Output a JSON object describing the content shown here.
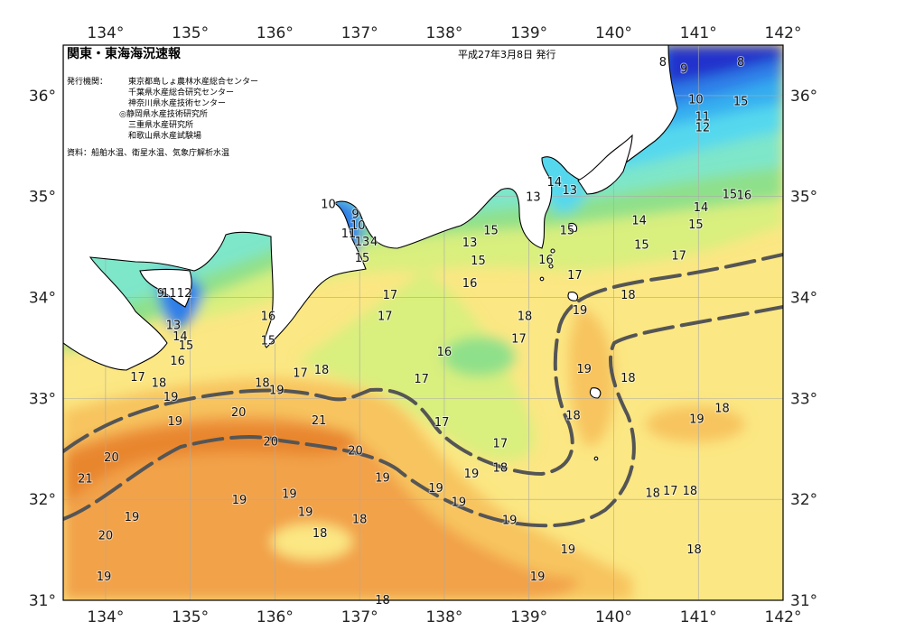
{
  "header": {
    "title": "関東・東海海況速報",
    "date": "平成27年3月8日 発行"
  },
  "issuers": {
    "label": "発行機関：",
    "items": [
      "東京都島しょ農林水産総合センター",
      "千葉県水産総合研究センター",
      "神奈川県水産技術センター",
      "◎静岡県水産技術研究所",
      "三重県水産研究所",
      "和歌山県水産試験場"
    ]
  },
  "source": "資料：船舶水温、衛星水温、気象庁解析水温",
  "axes": {
    "lon_ticks": [
      "134°",
      "135°",
      "136°",
      "137°",
      "138°",
      "139°",
      "140°",
      "141°",
      "142°"
    ],
    "lat_ticks": [
      "36°",
      "35°",
      "34°",
      "33°",
      "32°",
      "31°"
    ],
    "lon_range": [
      133.5,
      142.0
    ],
    "lat_range": [
      31.0,
      36.5
    ]
  },
  "colors": {
    "t8": "#2233cc",
    "t10": "#2f7fe8",
    "t12": "#36aef0",
    "t14": "#55d8ee",
    "t15": "#7ee6c9",
    "t16": "#8fe08a",
    "t17": "#d9ef7e",
    "t18": "#fbe783",
    "t19": "#f7c45f",
    "t20": "#f2a24a",
    "t21": "#e8862f",
    "land": "#ffffff",
    "kuroshio": "#555555"
  },
  "isotherm_labels": [
    {
      "t": "8",
      "lon": 140.58,
      "lat": 36.34
    },
    {
      "t": "9",
      "lon": 140.83,
      "lat": 36.27
    },
    {
      "t": "8",
      "lon": 141.5,
      "lat": 36.34
    },
    {
      "t": "10",
      "lon": 140.97,
      "lat": 35.97
    },
    {
      "t": "15",
      "lon": 141.5,
      "lat": 35.95
    },
    {
      "t": "11",
      "lon": 141.05,
      "lat": 35.8
    },
    {
      "t": "12",
      "lon": 141.05,
      "lat": 35.69
    },
    {
      "t": "15",
      "lon": 141.37,
      "lat": 35.03
    },
    {
      "t": "16",
      "lon": 141.54,
      "lat": 35.02
    },
    {
      "t": "14",
      "lon": 141.03,
      "lat": 34.9
    },
    {
      "t": "14",
      "lon": 140.3,
      "lat": 34.77
    },
    {
      "t": "15",
      "lon": 140.97,
      "lat": 34.73
    },
    {
      "t": "15",
      "lon": 140.33,
      "lat": 34.53
    },
    {
      "t": "17",
      "lon": 140.77,
      "lat": 34.42
    },
    {
      "t": "14",
      "lon": 139.3,
      "lat": 35.15
    },
    {
      "t": "13",
      "lon": 139.48,
      "lat": 35.07
    },
    {
      "t": "13",
      "lon": 139.05,
      "lat": 35.0
    },
    {
      "t": "15",
      "lon": 138.55,
      "lat": 34.67
    },
    {
      "t": "15",
      "lon": 139.45,
      "lat": 34.67
    },
    {
      "t": "13",
      "lon": 138.3,
      "lat": 34.55
    },
    {
      "t": "15",
      "lon": 138.4,
      "lat": 34.37
    },
    {
      "t": "16",
      "lon": 139.2,
      "lat": 34.38
    },
    {
      "t": "16",
      "lon": 138.3,
      "lat": 34.15
    },
    {
      "t": "17",
      "lon": 139.54,
      "lat": 34.23
    },
    {
      "t": "18",
      "lon": 140.17,
      "lat": 34.03
    },
    {
      "t": "19",
      "lon": 139.6,
      "lat": 33.88
    },
    {
      "t": "18",
      "lon": 138.95,
      "lat": 33.82
    },
    {
      "t": "17",
      "lon": 138.88,
      "lat": 33.6
    },
    {
      "t": "16",
      "lon": 138.0,
      "lat": 33.47
    },
    {
      "t": "17",
      "lon": 137.36,
      "lat": 34.03
    },
    {
      "t": "17",
      "lon": 137.3,
      "lat": 33.82
    },
    {
      "t": "10",
      "lon": 136.63,
      "lat": 34.93
    },
    {
      "t": "9",
      "lon": 136.95,
      "lat": 34.83
    },
    {
      "t": "10",
      "lon": 136.98,
      "lat": 34.72
    },
    {
      "t": "11",
      "lon": 136.87,
      "lat": 34.64
    },
    {
      "t": "13",
      "lon": 137.03,
      "lat": 34.56
    },
    {
      "t": "4",
      "lon": 137.17,
      "lat": 34.56
    },
    {
      "t": "15",
      "lon": 137.03,
      "lat": 34.4
    },
    {
      "t": "16",
      "lon": 135.92,
      "lat": 33.82
    },
    {
      "t": "15",
      "lon": 135.92,
      "lat": 33.58
    },
    {
      "t": "9",
      "lon": 134.65,
      "lat": 34.05
    },
    {
      "t": "11",
      "lon": 134.75,
      "lat": 34.05
    },
    {
      "t": "12",
      "lon": 134.93,
      "lat": 34.05
    },
    {
      "t": "13",
      "lon": 134.8,
      "lat": 33.73
    },
    {
      "t": "14",
      "lon": 134.88,
      "lat": 33.62
    },
    {
      "t": "15",
      "lon": 134.95,
      "lat": 33.53
    },
    {
      "t": "16",
      "lon": 134.85,
      "lat": 33.38
    },
    {
      "t": "17",
      "lon": 134.38,
      "lat": 33.22
    },
    {
      "t": "18",
      "lon": 134.63,
      "lat": 33.16
    },
    {
      "t": "19",
      "lon": 134.77,
      "lat": 33.02
    },
    {
      "t": "18",
      "lon": 135.85,
      "lat": 33.16
    },
    {
      "t": "19",
      "lon": 136.02,
      "lat": 33.09
    },
    {
      "t": "17",
      "lon": 136.3,
      "lat": 33.26
    },
    {
      "t": "18",
      "lon": 136.55,
      "lat": 33.29
    },
    {
      "t": "17",
      "lon": 137.73,
      "lat": 33.2
    },
    {
      "t": "19",
      "lon": 139.65,
      "lat": 33.3
    },
    {
      "t": "18",
      "lon": 140.17,
      "lat": 33.21
    },
    {
      "t": "20",
      "lon": 135.57,
      "lat": 32.87
    },
    {
      "t": "21",
      "lon": 136.52,
      "lat": 32.79
    },
    {
      "t": "19",
      "lon": 134.82,
      "lat": 32.78
    },
    {
      "t": "17",
      "lon": 137.97,
      "lat": 32.77
    },
    {
      "t": "18",
      "lon": 139.52,
      "lat": 32.84
    },
    {
      "t": "19",
      "lon": 140.98,
      "lat": 32.8
    },
    {
      "t": "18",
      "lon": 141.28,
      "lat": 32.91
    },
    {
      "t": "20",
      "lon": 135.95,
      "lat": 32.58
    },
    {
      "t": "20",
      "lon": 136.95,
      "lat": 32.49
    },
    {
      "t": "17",
      "lon": 138.66,
      "lat": 32.56
    },
    {
      "t": "20",
      "lon": 134.07,
      "lat": 32.42
    },
    {
      "t": "18",
      "lon": 138.66,
      "lat": 32.32
    },
    {
      "t": "19",
      "lon": 138.32,
      "lat": 32.26
    },
    {
      "t": "19",
      "lon": 137.27,
      "lat": 32.22
    },
    {
      "t": "21",
      "lon": 133.76,
      "lat": 32.21
    },
    {
      "t": "19",
      "lon": 137.9,
      "lat": 32.12
    },
    {
      "t": "19",
      "lon": 136.17,
      "lat": 32.06
    },
    {
      "t": "18",
      "lon": 140.46,
      "lat": 32.07
    },
    {
      "t": "17",
      "lon": 140.67,
      "lat": 32.09
    },
    {
      "t": "18",
      "lon": 140.9,
      "lat": 32.09
    },
    {
      "t": "19",
      "lon": 135.58,
      "lat": 32.0
    },
    {
      "t": "19",
      "lon": 138.17,
      "lat": 31.98
    },
    {
      "t": "19",
      "lon": 134.31,
      "lat": 31.83
    },
    {
      "t": "18",
      "lon": 137.0,
      "lat": 31.81
    },
    {
      "t": "19",
      "lon": 136.36,
      "lat": 31.88
    },
    {
      "t": "19",
      "lon": 138.77,
      "lat": 31.8
    },
    {
      "t": "18",
      "lon": 136.53,
      "lat": 31.67
    },
    {
      "t": "20",
      "lon": 134.0,
      "lat": 31.65
    },
    {
      "t": "19",
      "lon": 139.46,
      "lat": 31.51
    },
    {
      "t": "18",
      "lon": 140.95,
      "lat": 31.51
    },
    {
      "t": "19",
      "lon": 139.1,
      "lat": 31.24
    },
    {
      "t": "19",
      "lon": 133.98,
      "lat": 31.24
    },
    {
      "t": "18",
      "lon": 137.27,
      "lat": 31.01
    }
  ]
}
